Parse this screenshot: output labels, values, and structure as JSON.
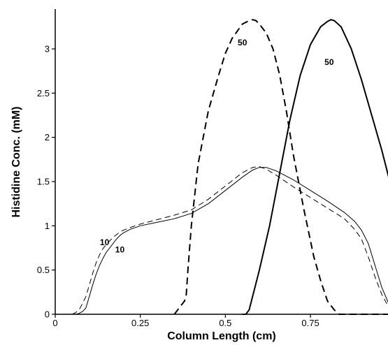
{
  "chart_data": {
    "type": "line",
    "title": "",
    "xlabel": "Column Length (cm)",
    "ylabel": "Histidine Conc. (mM)",
    "xlim": [
      0,
      0.98
    ],
    "ylim": [
      0,
      3.45
    ],
    "xticks": [
      0,
      0.25,
      0.5,
      0.75
    ],
    "xtick_labels": [
      "0",
      "0.25",
      "0.5",
      "0.75"
    ],
    "yticks": [
      0,
      0.5,
      1,
      1.5,
      2,
      2.5,
      3
    ],
    "ytick_labels": [
      "0",
      "0.5",
      "1",
      "1.5",
      "2",
      "2.5",
      "3"
    ],
    "grid": false,
    "legend": "none",
    "series": [
      {
        "style": "thin-solid",
        "x": [
          0.05,
          0.06,
          0.07,
          0.08,
          0.09,
          0.1,
          0.11,
          0.12,
          0.13,
          0.14,
          0.15,
          0.16,
          0.17,
          0.18,
          0.19,
          0.2,
          0.22,
          0.25,
          0.3,
          0.35,
          0.4,
          0.45,
          0.5,
          0.55,
          0.58,
          0.6,
          0.62,
          0.65,
          0.7,
          0.75,
          0.8,
          0.85,
          0.88,
          0.9,
          0.92,
          0.94,
          0.96,
          0.98
        ],
        "y": [
          0,
          0,
          0.01,
          0.03,
          0.07,
          0.2,
          0.33,
          0.45,
          0.55,
          0.63,
          0.7,
          0.75,
          0.8,
          0.85,
          0.89,
          0.92,
          0.96,
          1.0,
          1.04,
          1.08,
          1.14,
          1.25,
          1.4,
          1.55,
          1.63,
          1.66,
          1.66,
          1.62,
          1.52,
          1.4,
          1.28,
          1.15,
          1.05,
          0.95,
          0.8,
          0.55,
          0.3,
          0.12
        ]
      },
      {
        "style": "thin-dashed",
        "x": [
          0.05,
          0.06,
          0.07,
          0.08,
          0.09,
          0.1,
          0.11,
          0.12,
          0.13,
          0.14,
          0.15,
          0.16,
          0.17,
          0.18,
          0.19,
          0.2,
          0.22,
          0.25,
          0.3,
          0.35,
          0.4,
          0.45,
          0.5,
          0.55,
          0.58,
          0.6,
          0.62,
          0.65,
          0.7,
          0.75,
          0.8,
          0.85,
          0.88,
          0.9,
          0.92,
          0.94,
          0.96,
          0.98
        ],
        "y": [
          0,
          0.02,
          0.05,
          0.12,
          0.2,
          0.33,
          0.46,
          0.58,
          0.67,
          0.74,
          0.79,
          0.83,
          0.87,
          0.9,
          0.93,
          0.95,
          0.98,
          1.02,
          1.07,
          1.12,
          1.18,
          1.3,
          1.45,
          1.6,
          1.66,
          1.67,
          1.64,
          1.57,
          1.44,
          1.32,
          1.2,
          1.08,
          0.96,
          0.85,
          0.65,
          0.42,
          0.22,
          0.08
        ]
      },
      {
        "style": "thick-dashed",
        "x": [
          0.35,
          0.37,
          0.38,
          0.385,
          0.39,
          0.4,
          0.42,
          0.45,
          0.48,
          0.5,
          0.52,
          0.55,
          0.57,
          0.58,
          0.59,
          0.6,
          0.62,
          0.64,
          0.66,
          0.68,
          0.7,
          0.73,
          0.76,
          0.78,
          0.8,
          0.82,
          0.835,
          0.84,
          0.88,
          0.92,
          0.98
        ],
        "y": [
          0,
          0.1,
          0.15,
          0.22,
          0.5,
          1.0,
          1.7,
          2.3,
          2.7,
          2.95,
          3.12,
          3.28,
          3.32,
          3.33,
          3.32,
          3.28,
          3.18,
          3.0,
          2.7,
          2.28,
          1.8,
          1.2,
          0.65,
          0.38,
          0.15,
          0.05,
          0,
          0,
          0,
          0,
          0
        ]
      },
      {
        "style": "thick-solid",
        "x": [
          0.55,
          0.56,
          0.57,
          0.6,
          0.63,
          0.66,
          0.69,
          0.72,
          0.75,
          0.78,
          0.8,
          0.81,
          0.82,
          0.84,
          0.87,
          0.9,
          0.93,
          0.96,
          0.98
        ],
        "y": [
          0,
          0,
          0.05,
          0.5,
          1.0,
          1.6,
          2.2,
          2.7,
          3.05,
          3.25,
          3.31,
          3.33,
          3.32,
          3.25,
          3.0,
          2.65,
          2.25,
          1.85,
          1.55
        ]
      }
    ],
    "annotations": [
      {
        "text": "10",
        "x": 0.145,
        "y": 0.78
      },
      {
        "text": "10",
        "x": 0.19,
        "y": 0.7
      },
      {
        "text": "50",
        "x": 0.55,
        "y": 3.04
      },
      {
        "text": "50",
        "x": 0.805,
        "y": 2.82
      }
    ]
  }
}
